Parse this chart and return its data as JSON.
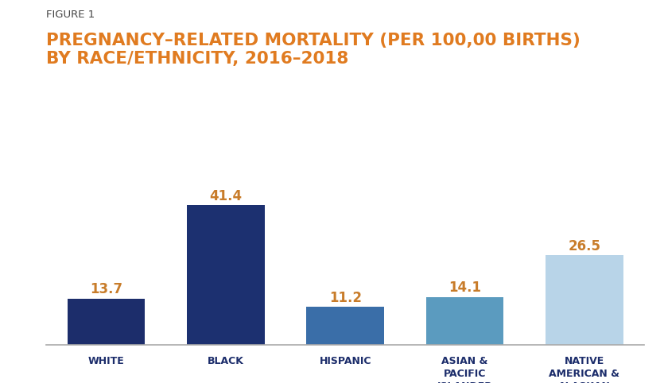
{
  "figure_label": "FIGURE 1",
  "title_line1": "PREGNANCY–RELATED MORTALITY (PER 100,00 BIRTHS)",
  "title_line2": "BY RACE/ETHNICITY, 2016–2018",
  "categories": [
    "WHITE",
    "BLACK",
    "HISPANIC",
    "ASIAN &\nPACIFIC\nISLANDER",
    "NATIVE\nAMERICAN &\nALASKAN"
  ],
  "values": [
    13.7,
    41.4,
    11.2,
    14.1,
    26.5
  ],
  "bar_colors": [
    "#1c2d6b",
    "#1c3070",
    "#3a6ea8",
    "#5b9bbf",
    "#b8d4e8"
  ],
  "value_color": "#c87c2a",
  "title_color": "#e07b20",
  "figure_label_color": "#444444",
  "tick_label_color": "#1c2d6b",
  "background_color": "#ffffff",
  "ylim": [
    0,
    50
  ],
  "value_fontsize": 12,
  "label_fontsize": 9,
  "figure_label_fontsize": 9.5,
  "title_fontsize": 15.5,
  "bar_width": 0.65
}
